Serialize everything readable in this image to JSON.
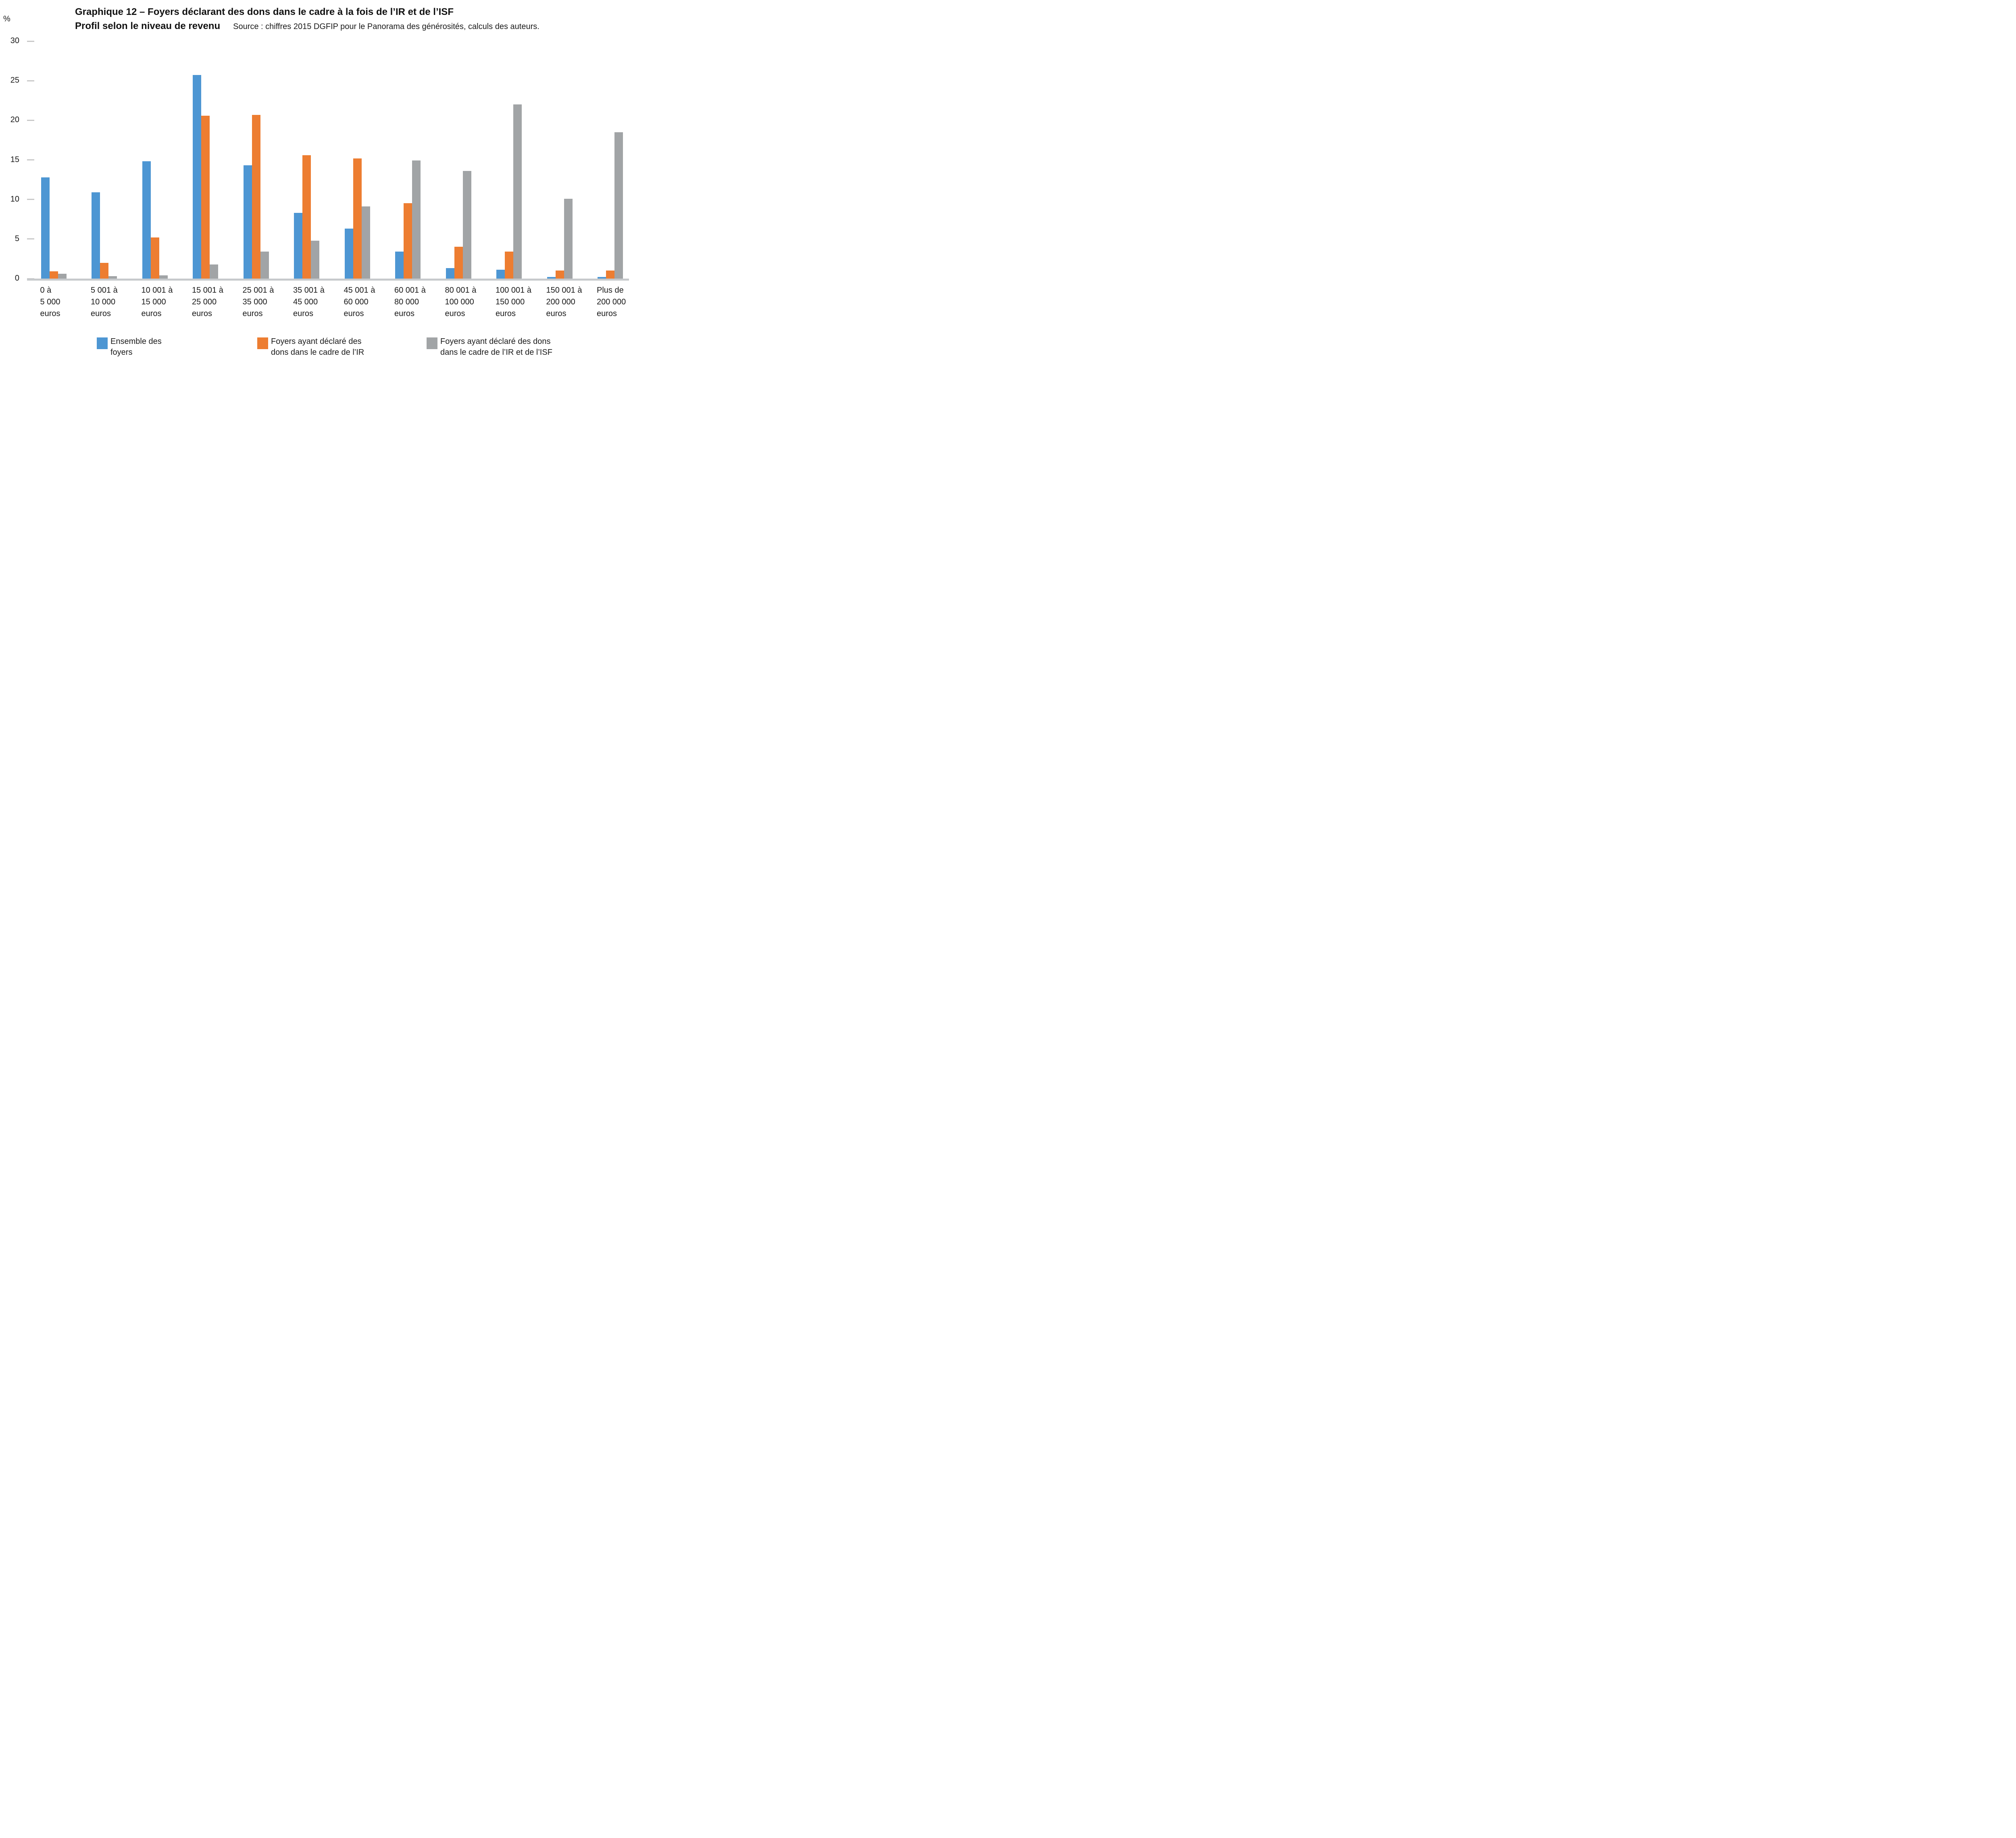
{
  "header": {
    "title_line1": "Graphique 12 – Foyers déclarant des dons dans le cadre à la fois de l’IR et de l’ISF",
    "title_line2": "Profil selon le niveau de revenu",
    "source": "Source : chiffres 2015 DGFIP pour le Panorama des générosités, calculs des auteurs."
  },
  "chart_data": {
    "type": "bar",
    "title": "Graphique 12 – Foyers déclarant des dons dans le cadre à la fois de l’IR et de l’ISF",
    "subtitle": "Profil selon le niveau de revenu",
    "unit_label": "%",
    "ylabel": "%",
    "xlabel": "",
    "ylim": [
      0,
      30
    ],
    "yticks": [
      30,
      25,
      20,
      15,
      10,
      5,
      0
    ],
    "grid": false,
    "legend_position": "bottom",
    "axis_color": "#C9C9C9",
    "categories": [
      "0 à 5 000 euros",
      "5 001 à 10 000 euros",
      "10 001 à 15 000 euros",
      "15 001 à 25 000 euros",
      "25 001 à 35 000 euros",
      "35 001 à 45 000 euros",
      "45 001 à 60 000 euros",
      "60 001 à 80 000 euros",
      "80 001 à 100 000 euros",
      "100 001 à 150 000 euros",
      "150 001 à 200 000 euros",
      "Plus de 200 000 euros"
    ],
    "categories_lines": [
      [
        "0 à",
        "5 000",
        "euros"
      ],
      [
        "5 001 à",
        "10 000",
        "euros"
      ],
      [
        "10 001 à",
        "15 000",
        "euros"
      ],
      [
        "15 001 à",
        "25 000",
        "euros"
      ],
      [
        "25 001 à",
        "35 000",
        "euros"
      ],
      [
        "35 001 à",
        "45 000",
        "euros"
      ],
      [
        "45 001 à",
        "60 000",
        "euros"
      ],
      [
        "60 001 à",
        "80 000",
        "euros"
      ],
      [
        "80 001 à",
        "100 000",
        "euros"
      ],
      [
        "100 001 à",
        "150 000",
        "euros"
      ],
      [
        "150 001 à",
        "200 000",
        "euros"
      ],
      [
        "Plus de",
        "200 000",
        "euros"
      ]
    ],
    "series": [
      {
        "name": "Ensemble des foyers",
        "color": "#4D96D3",
        "values": [
          12.8,
          10.9,
          14.8,
          25.7,
          14.3,
          8.3,
          6.3,
          3.4,
          1.3,
          1.1,
          0.2,
          0.2
        ]
      },
      {
        "name": "Foyers ayant déclaré des dons dans le cadre de l’IR",
        "color": "#ED7D31",
        "values": [
          0.9,
          2.0,
          5.2,
          20.6,
          20.7,
          15.6,
          15.2,
          9.5,
          4.0,
          3.4,
          1.0,
          1.0
        ]
      },
      {
        "name": "Foyers ayant déclaré des dons dans le cadre de l’IR et de l’ISF",
        "color": "#A1A4A6",
        "values": [
          0.6,
          0.3,
          0.4,
          1.8,
          3.4,
          4.8,
          9.1,
          14.9,
          13.6,
          22.0,
          10.1,
          18.5
        ]
      }
    ],
    "legend_lines": [
      [
        "Ensemble des",
        "foyers"
      ],
      [
        "Foyers ayant déclaré des",
        "dons dans le cadre de l’IR"
      ],
      [
        "Foyers ayant déclaré des dons",
        "dans le cadre de l’IR et de l’ISF"
      ]
    ]
  }
}
